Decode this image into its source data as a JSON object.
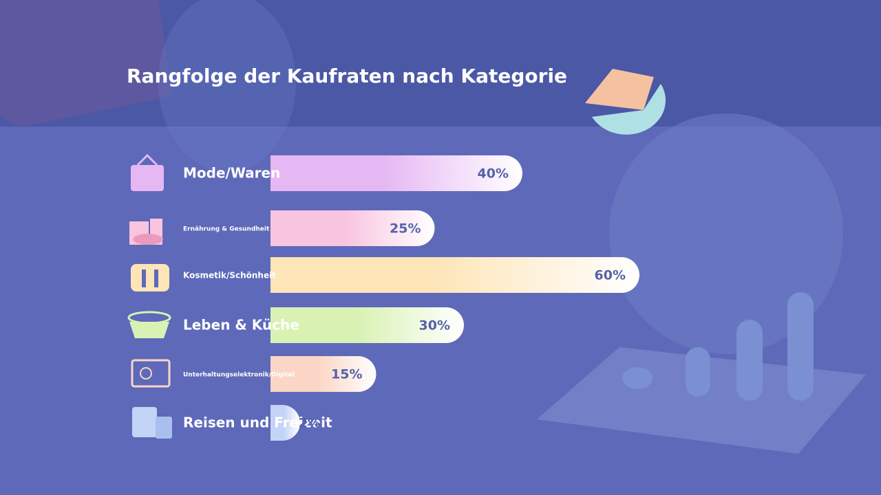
{
  "chart_data": {
    "type": "bar",
    "orientation": "horizontal",
    "title": "Rangfolge der Kaufraten nach Kategorie",
    "categories": [
      "Mode/Waren",
      "Ernährung & Gesundheit",
      "Kosmetik/Schönheit",
      "Leben & Küche",
      "Unterhaltungselektronik/Digital",
      "Reisen und Freizeit"
    ],
    "values": [
      40,
      25,
      60,
      30,
      15,
      2
    ],
    "value_labels": [
      "40%",
      "25%",
      "60%",
      "30%",
      "15%",
      "2%"
    ],
    "colors": [
      "#e6b8f3",
      "#f9c4e0",
      "#fde5b8",
      "#d9f2b4",
      "#fbd6c6",
      "#c4d4f7"
    ]
  }
}
